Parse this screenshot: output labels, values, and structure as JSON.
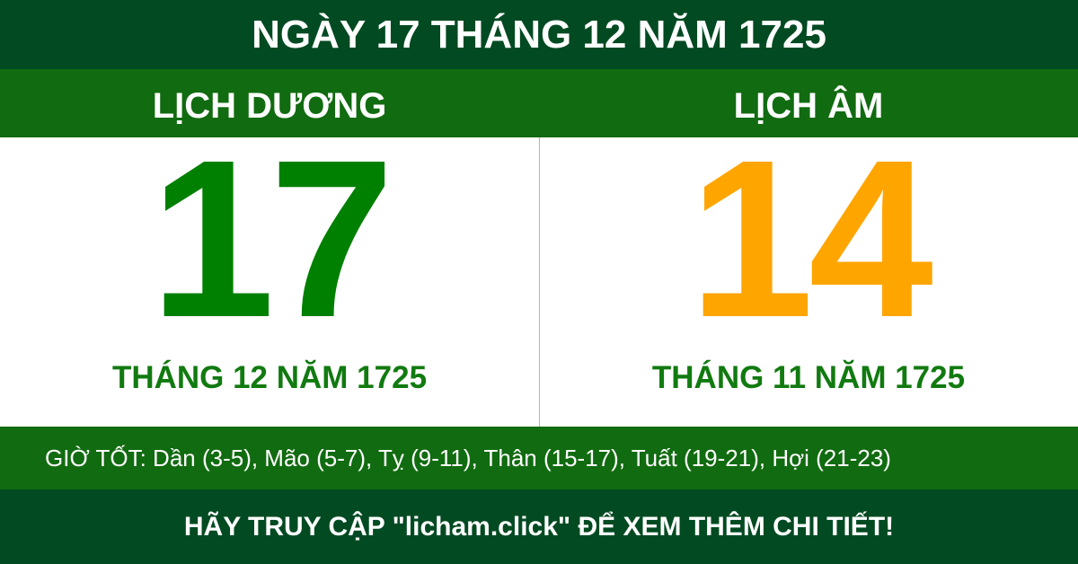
{
  "title": "NGÀY 17 THÁNG 12 NĂM 1725",
  "solar": {
    "label": "LỊCH DƯƠNG",
    "day": "17",
    "month_year": "THÁNG 12 NĂM 1725",
    "color": "#008000"
  },
  "lunar": {
    "label": "LỊCH ÂM",
    "day": "14",
    "month_year": "THÁNG 11 NĂM 1725",
    "color": "#ffa500"
  },
  "good_hours": "GIỜ TỐT: Dần (3-5), Mão (5-7), Tỵ (9-11), Thân (15-17), Tuất (19-21), Hợi (21-23)",
  "footer": "HÃY TRUY CẬP \"licham.click\" ĐỂ XEM THÊM CHI TIẾT!"
}
